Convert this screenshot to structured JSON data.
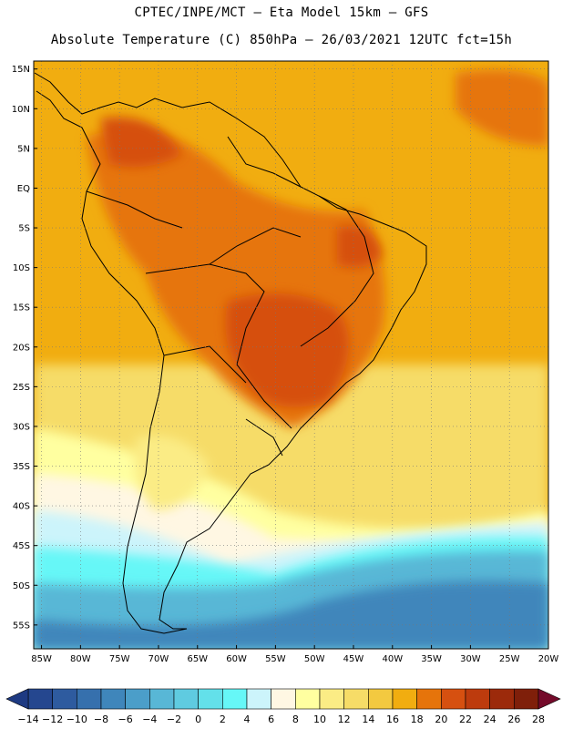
{
  "header": {
    "line1": "CPTEC/INPE/MCT –   Eta Model 15km – GFS",
    "line2": "Absolute Temperature (C) 850hPa – 26/03/2021 12UTC fct=15h"
  },
  "map": {
    "lat_labels": [
      "15N",
      "10N",
      "5N",
      "EQ",
      "5S",
      "10S",
      "15S",
      "20S",
      "25S",
      "30S",
      "35S",
      "40S",
      "45S",
      "50S",
      "55S"
    ],
    "lon_labels": [
      "85W",
      "80W",
      "75W",
      "70W",
      "65W",
      "60W",
      "55W",
      "50W",
      "45W",
      "40W",
      "35W",
      "30W",
      "25W",
      "20W"
    ],
    "lon_range": [
      -86,
      -20
    ],
    "lat_range": [
      -58,
      16
    ]
  },
  "colorbar": {
    "tick_labels": [
      "-14",
      "-12",
      "-10",
      "-8",
      "-6",
      "-4",
      "-2",
      "0",
      "2",
      "4",
      "6",
      "8",
      "10",
      "12",
      "14",
      "16",
      "18",
      "20",
      "22",
      "24",
      "26",
      "28"
    ],
    "colors": [
      "#25478f",
      "#2e5b9f",
      "#3670ad",
      "#3f86bb",
      "#4b9ec9",
      "#58b7d6",
      "#5fcbe0",
      "#63e0ea",
      "#66f7f7",
      "#ccf4fb",
      "#fff7e3",
      "#ffffa0",
      "#fbec85",
      "#f6dc67",
      "#f3c940",
      "#f1ad10",
      "#e6740b",
      "#d65010",
      "#bd3b0d",
      "#9c2a0b",
      "#7f1f0a"
    ],
    "under_color": "#1e3a82",
    "over_color": "#740a2a"
  }
}
